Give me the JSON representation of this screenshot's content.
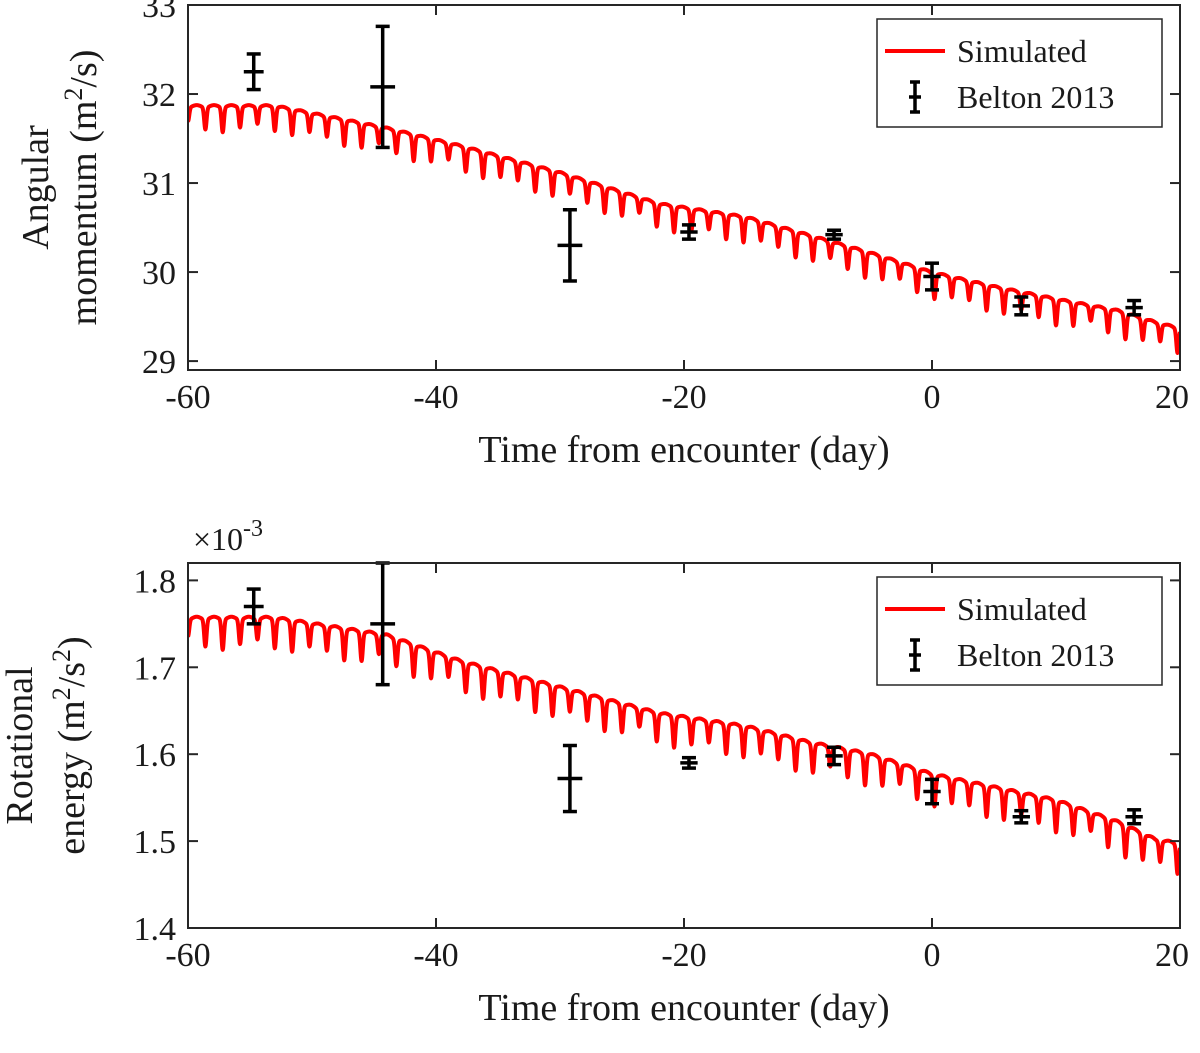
{
  "chart_data": [
    {
      "type": "line",
      "xlabel": "Time from encounter (day)",
      "ylabel": [
        "Angular",
        "momentum (m",
        "2",
        "/s)"
      ],
      "xlim": [
        -60,
        20
      ],
      "ylim": [
        28.9,
        33
      ],
      "xticks": [
        -60,
        -40,
        -20,
        0,
        20
      ],
      "yticks": [
        29,
        30,
        31,
        32,
        33
      ],
      "xtick_labels": [
        "-60",
        "-40",
        "-20",
        "0",
        "20"
      ],
      "ytick_labels": [
        "29",
        "30",
        "31",
        "32",
        "33"
      ],
      "exponent": "",
      "legend_position": "top-right",
      "series": [
        {
          "name": "Simulated",
          "kind": "line",
          "color": "#ff0000",
          "trend": {
            "x": [
              -60,
              -53,
              -44,
              -38,
              -30,
              -22,
              -15,
              -10,
              -5,
              0,
              5,
              10,
              15,
              18,
              20
            ],
            "y": [
              31.85,
              31.85,
              31.6,
              31.4,
              31.1,
              30.75,
              30.6,
              30.4,
              30.2,
              29.98,
              29.82,
              29.68,
              29.55,
              29.42,
              29.35
            ]
          },
          "dip_period_days": 1.4,
          "dip_depth": 0.28
        },
        {
          "name": "Belton 2013",
          "kind": "errorbar",
          "color": "#000000",
          "points": [
            {
              "x": -54.7,
              "y": 32.25,
              "yerr": 0.2,
              "xerr": 0.8
            },
            {
              "x": -44.3,
              "y": 32.08,
              "yerr": 0.68,
              "xerr": 1.0
            },
            {
              "x": -29.2,
              "y": 30.3,
              "yerr": 0.4,
              "xerr": 1.0
            },
            {
              "x": -19.6,
              "y": 30.45,
              "yerr": 0.08,
              "xerr": 0.7
            },
            {
              "x": -7.9,
              "y": 30.42,
              "yerr": 0.05,
              "xerr": 0.7
            },
            {
              "x": 0.0,
              "y": 29.95,
              "yerr": 0.15,
              "xerr": 0.7
            },
            {
              "x": 7.2,
              "y": 29.62,
              "yerr": 0.1,
              "xerr": 0.7
            },
            {
              "x": 16.3,
              "y": 29.6,
              "yerr": 0.08,
              "xerr": 0.7
            }
          ]
        }
      ]
    },
    {
      "type": "line",
      "xlabel": "Time from encounter (day)",
      "ylabel": [
        "Rotational",
        "energy (m",
        "2",
        "/s",
        "2",
        ")"
      ],
      "xlim": [
        -60,
        20
      ],
      "ylim": [
        1.4,
        1.82
      ],
      "xticks": [
        -60,
        -40,
        -20,
        0,
        20
      ],
      "yticks": [
        1.4,
        1.5,
        1.6,
        1.7,
        1.8
      ],
      "xtick_labels": [
        "-60",
        "-40",
        "-20",
        "0",
        "20"
      ],
      "ytick_labels": [
        "1.4",
        "1.5",
        "1.6",
        "1.7",
        "1.8"
      ],
      "exponent": "×10",
      "exponent_power": "-3",
      "legend_position": "top-right",
      "series": [
        {
          "name": "Simulated",
          "kind": "line",
          "color": "#ff0000",
          "trend": {
            "x": [
              -60,
              -53,
              -44,
              -38,
              -30,
              -22,
              -15,
              -10,
              -5,
              0,
              5,
              10,
              15,
              18,
              20
            ],
            "y": [
              1.755,
              1.755,
              1.735,
              1.705,
              1.675,
              1.645,
              1.63,
              1.612,
              1.598,
              1.575,
              1.56,
              1.545,
              1.52,
              1.5,
              1.495
            ]
          },
          "dip_period_days": 1.4,
          "dip_depth": 0.035
        },
        {
          "name": "Belton 2013",
          "kind": "errorbar",
          "color": "#000000",
          "points": [
            {
              "x": -54.7,
              "y": 1.77,
              "yerr": 0.02,
              "xerr": 0.8
            },
            {
              "x": -44.3,
              "y": 1.75,
              "yerr": 0.07,
              "xerr": 1.0
            },
            {
              "x": -29.2,
              "y": 1.572,
              "yerr": 0.038,
              "xerr": 1.0
            },
            {
              "x": -19.6,
              "y": 1.59,
              "yerr": 0.006,
              "xerr": 0.7
            },
            {
              "x": -7.9,
              "y": 1.598,
              "yerr": 0.01,
              "xerr": 0.7
            },
            {
              "x": 0.0,
              "y": 1.557,
              "yerr": 0.014,
              "xerr": 0.7
            },
            {
              "x": 7.2,
              "y": 1.528,
              "yerr": 0.007,
              "xerr": 0.7
            },
            {
              "x": 16.3,
              "y": 1.528,
              "yerr": 0.008,
              "xerr": 0.7
            }
          ]
        }
      ]
    }
  ]
}
